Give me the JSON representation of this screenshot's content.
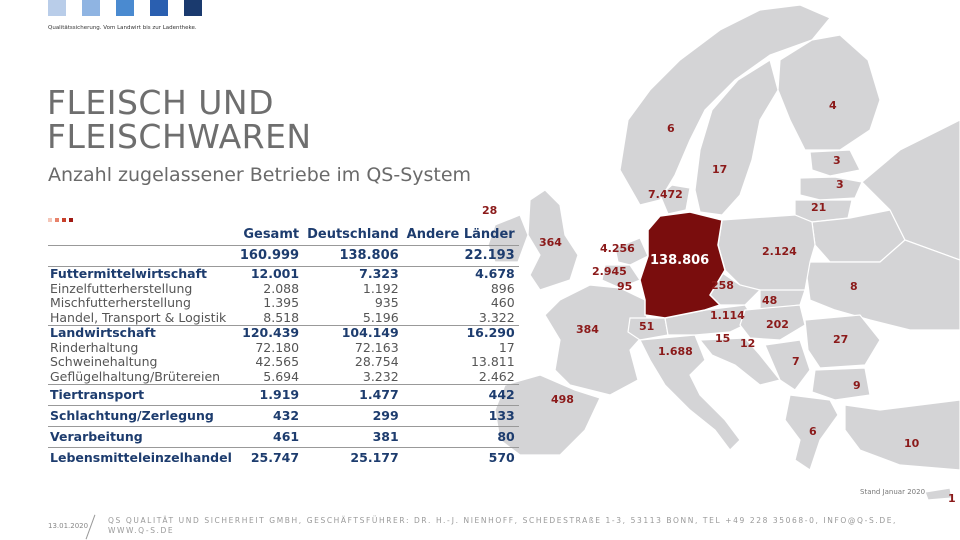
{
  "brand": {
    "tagline": "Qualitätssicherung. Vom Landwirt bis zur Ladentheke.",
    "colors": [
      "#b9cde9",
      "#8fb4e2",
      "#4a8ad0",
      "#2a5fb0",
      "#1a3a6e"
    ]
  },
  "title_line1": "FLEISCH UND",
  "title_line2": "FLEISCHWAREN",
  "subtitle": "Anzahl zugelassener Betriebe im QS-System",
  "table": {
    "headers": [
      "Gesamt",
      "Deutschland",
      "Andere Länder"
    ],
    "total": [
      "160.999",
      "138.806",
      "22.193"
    ],
    "rows": [
      {
        "label": "Futtermittelwirtschaft",
        "values": [
          "12.001",
          "7.323",
          "4.678"
        ]
      },
      {
        "label": "Einzelfutterherstellung",
        "values": [
          "2.088",
          "1.192",
          "896"
        ]
      },
      {
        "label": "Mischfutterherstellung",
        "values": [
          "1.395",
          "935",
          "460"
        ]
      },
      {
        "label": "Handel, Transport & Logistik",
        "values": [
          "8.518",
          "5.196",
          "3.322"
        ]
      },
      {
        "label": "Landwirtschaft",
        "values": [
          "120.439",
          "104.149",
          "16.290"
        ]
      },
      {
        "label": "Rinderhaltung",
        "values": [
          "72.180",
          "72.163",
          "17"
        ]
      },
      {
        "label": "Schweinehaltung",
        "values": [
          "42.565",
          "28.754",
          "13.811"
        ]
      },
      {
        "label": "Geflügelhaltung/Brütereien",
        "values": [
          "5.694",
          "3.232",
          "2.462"
        ]
      },
      {
        "label": "Tiertransport",
        "values": [
          "1.919",
          "1.477",
          "442"
        ]
      },
      {
        "label": "Schlachtung/Zerlegung",
        "values": [
          "432",
          "299",
          "133"
        ]
      },
      {
        "label": "Verarbeitung",
        "values": [
          "461",
          "381",
          "80"
        ]
      },
      {
        "label": "Lebensmitteleinzelhandel",
        "values": [
          "25.747",
          "25.177",
          "570"
        ]
      }
    ]
  },
  "map_labels": {
    "finland": "4",
    "sweden": "17",
    "norway": "6",
    "estonia1": "3",
    "estonia2": "3",
    "lithuania": "21",
    "denmark": "7.472",
    "ireland": "28",
    "uk": "364",
    "netherlands": "4.256",
    "belgium": "2.945",
    "luxembourg": "95",
    "germany": "138.806",
    "poland": "2.124",
    "czechia": "258",
    "slovakia": "48",
    "ukraine": "8",
    "austria": "1.114",
    "hungary": "202",
    "france": "384",
    "switzerland": "51",
    "slovenia": "15",
    "croatia": "12",
    "italy": "1.688",
    "romania": "27",
    "serbia": "7",
    "bulgaria": "9",
    "spain": "498",
    "greece": "6",
    "turkey": "10",
    "cyprus": "1"
  },
  "stand": "Stand Januar 2020",
  "footer": {
    "date": "13.01.2020",
    "text": "QS QUALITÄT UND SICHERHEIT GMBH, GESCHÄFTSFÜHRER: DR. H.-J. NIENHOFF, SCHEDESTRAßE 1-3, 53113 BONN, TEL +49 228 35068-0, INFO@Q-S.DE, WWW.Q-S.DE"
  }
}
